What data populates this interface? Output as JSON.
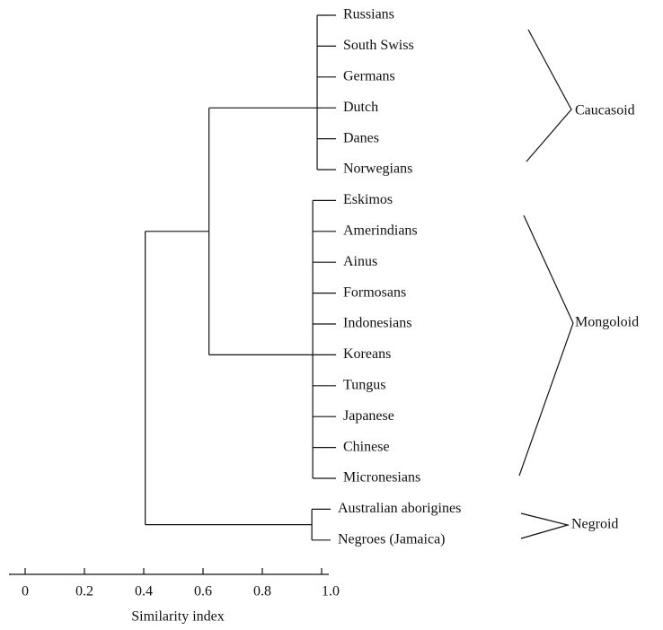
{
  "chart_data": {
    "type": "dendrogram",
    "xlabel": "Similarity index",
    "xlim": [
      0,
      1
    ],
    "xticks": [
      0,
      0.2,
      0.4,
      0.6,
      0.8,
      {
        "value": 1,
        "label": "1.0"
      }
    ],
    "groups": [
      {
        "label": "Caucasoid",
        "height": 0.985,
        "leaves": [
          "Russians",
          "South Swiss",
          "Germans",
          "Dutch",
          "Danes",
          "Norwegians"
        ]
      },
      {
        "label": "Mongoloid",
        "height": 0.97,
        "leaves": [
          "Eskimos",
          "Amerindians",
          "Ainus",
          "Formosans",
          "Indonesians",
          "Koreans",
          "Tungus",
          "Japanese",
          "Chinese",
          "Micronesians"
        ]
      },
      {
        "label": "Negroid",
        "height": 0.967,
        "leaves": [
          "Australian aborigines",
          "Negroes (Jamaica)"
        ]
      }
    ],
    "merge_heights": [
      0.62,
      0.405
    ],
    "color": "#000000"
  }
}
